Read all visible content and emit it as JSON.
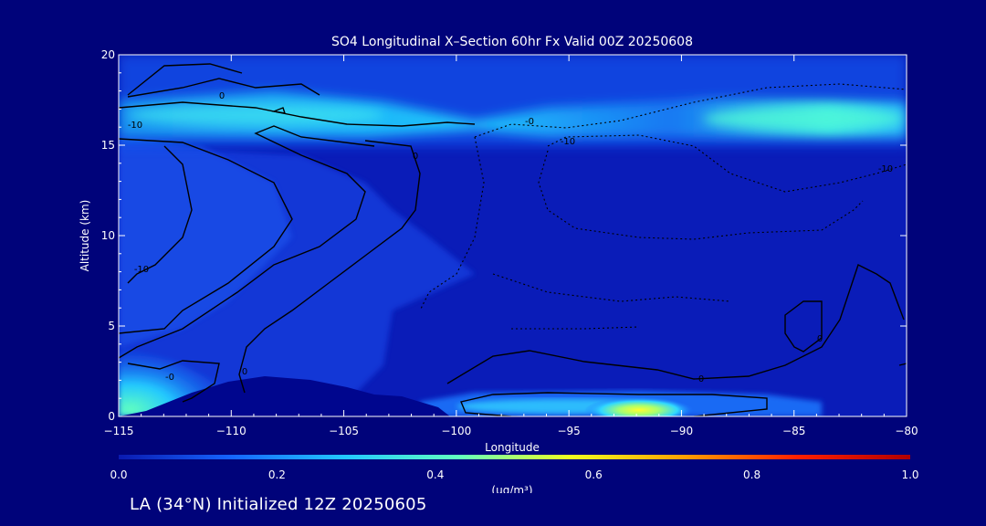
{
  "chart_data": {
    "type": "heatmap",
    "title": "SO4 Longitudinal X–Section 60hr  Fx Valid 00Z 20250608",
    "xlabel": "Longitude",
    "ylabel": "Altitude (km)",
    "xlim": [
      -115,
      -80
    ],
    "ylim": [
      0,
      20
    ],
    "x_ticks": [
      -115,
      -110,
      -105,
      -100,
      -95,
      -90,
      -85,
      -80
    ],
    "y_ticks": [
      0,
      5,
      10,
      15,
      20
    ],
    "colorbar": {
      "min": 0.0,
      "max": 1.0,
      "ticks": [
        "0.0",
        "0.2",
        "0.4",
        "0.6",
        "0.8",
        "1.0"
      ],
      "unit": "(ug/m³)",
      "colors": [
        "#0a1ab0",
        "#1565ff",
        "#22c8ff",
        "#60ffc0",
        "#f0ff20",
        "#ffa000",
        "#ff2000",
        "#b00000"
      ]
    },
    "features": [
      {
        "name": "upper layer maximum",
        "altitude_km": 16.5,
        "lon_from": -115,
        "lon_to": -80,
        "value": 0.35
      },
      {
        "name": "surface maximum",
        "altitude_km": 0.3,
        "lon_from": -100,
        "lon_to": -88,
        "peak_lon": -92.5,
        "value": 0.6
      },
      {
        "name": "west surface",
        "altitude_km": 0.5,
        "lon_from": -115,
        "lon_to": -113,
        "value": 0.4
      }
    ],
    "contour_labels": [
      "0",
      "-10",
      "-10",
      "-0",
      "0",
      "0",
      "-0",
      "-10",
      "-10",
      "0",
      "0"
    ]
  },
  "footer": "LA (34°N) Initialized 12Z 20250605",
  "colors": {
    "background": "#00037a",
    "text": "#ffffff",
    "contour": "#000000"
  }
}
